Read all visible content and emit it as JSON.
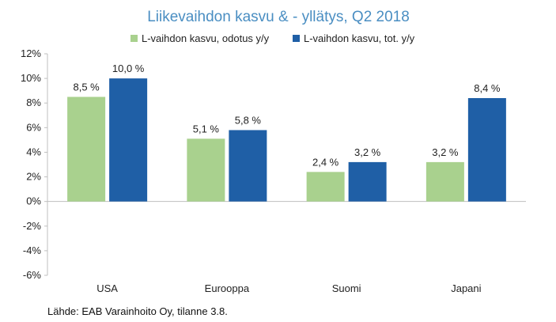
{
  "chart_data": {
    "type": "bar",
    "title": "Liikevaihdon kasvu & - yllätys, Q2 2018",
    "categories": [
      "USA",
      "Eurooppa",
      "Suomi",
      "Japani"
    ],
    "series": [
      {
        "name": "L-vaihdon kasvu, odotus y/y",
        "color": "#a9d18e",
        "values": [
          8.5,
          5.1,
          2.4,
          3.2
        ],
        "labels": [
          "8,5 %",
          "5,1 %",
          "2,4 %",
          "3,2 %"
        ]
      },
      {
        "name": "L-vaihdon kasvu, tot. y/y",
        "color": "#1f5fa6",
        "values": [
          10.0,
          5.8,
          3.2,
          8.4
        ],
        "labels": [
          "10,0 %",
          "5,8 %",
          "3,2 %",
          "8,4 %"
        ]
      }
    ],
    "yticks": [
      12,
      10,
      8,
      6,
      4,
      2,
      0,
      -2,
      -4,
      -6
    ],
    "ytick_labels": [
      "12%",
      "10%",
      "8%",
      "6%",
      "4%",
      "2%",
      "0%",
      "-2%",
      "-4%",
      "-6%"
    ],
    "ylim": [
      -6,
      12
    ],
    "legend_position": "top",
    "grid": false
  },
  "source_note": "Lähde: EAB Varainhoito Oy, tilanne 3.8."
}
